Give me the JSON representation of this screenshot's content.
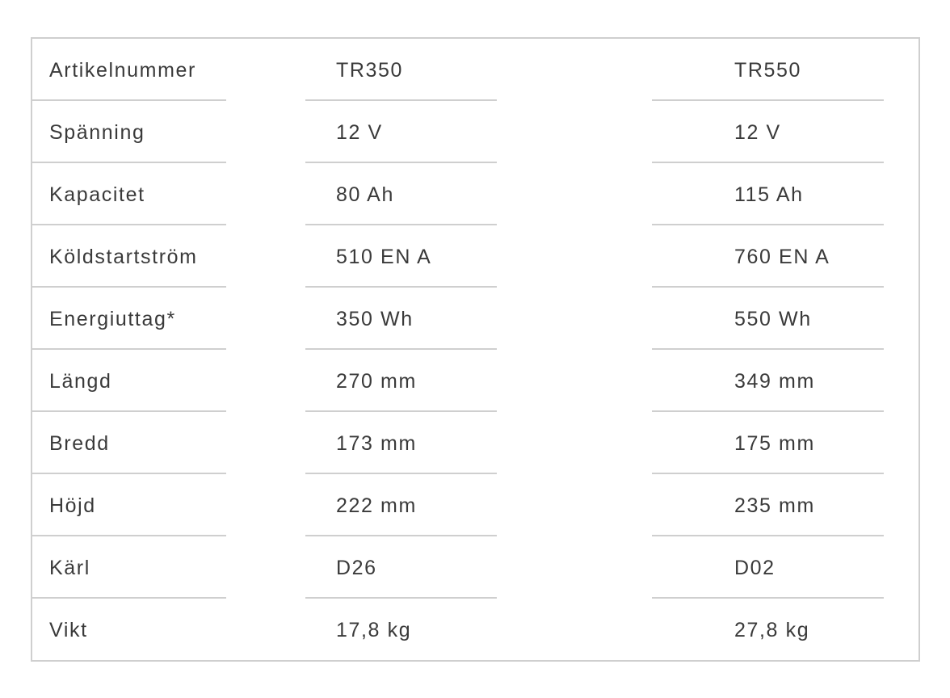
{
  "table": {
    "rows": [
      {
        "label": "Artikelnummer",
        "values": [
          "TR350",
          "TR550"
        ]
      },
      {
        "label": "Spänning",
        "values": [
          "12 V",
          "12 V"
        ]
      },
      {
        "label": "Kapacitet",
        "values": [
          "80 Ah",
          "115 Ah"
        ]
      },
      {
        "label": "Köldstartström",
        "values": [
          "510 EN A",
          "760 EN A"
        ]
      },
      {
        "label": "Energiuttag*",
        "values": [
          "350 Wh",
          "550 Wh"
        ]
      },
      {
        "label": "Längd",
        "values": [
          "270 mm",
          "349 mm"
        ]
      },
      {
        "label": "Bredd",
        "values": [
          "173 mm",
          "175 mm"
        ]
      },
      {
        "label": "Höjd",
        "values": [
          "222 mm",
          "235 mm"
        ]
      },
      {
        "label": "Kärl",
        "values": [
          "D26",
          "D02"
        ]
      },
      {
        "label": "Vikt",
        "values": [
          "17,8 kg",
          "27,8 kg"
        ]
      }
    ]
  }
}
